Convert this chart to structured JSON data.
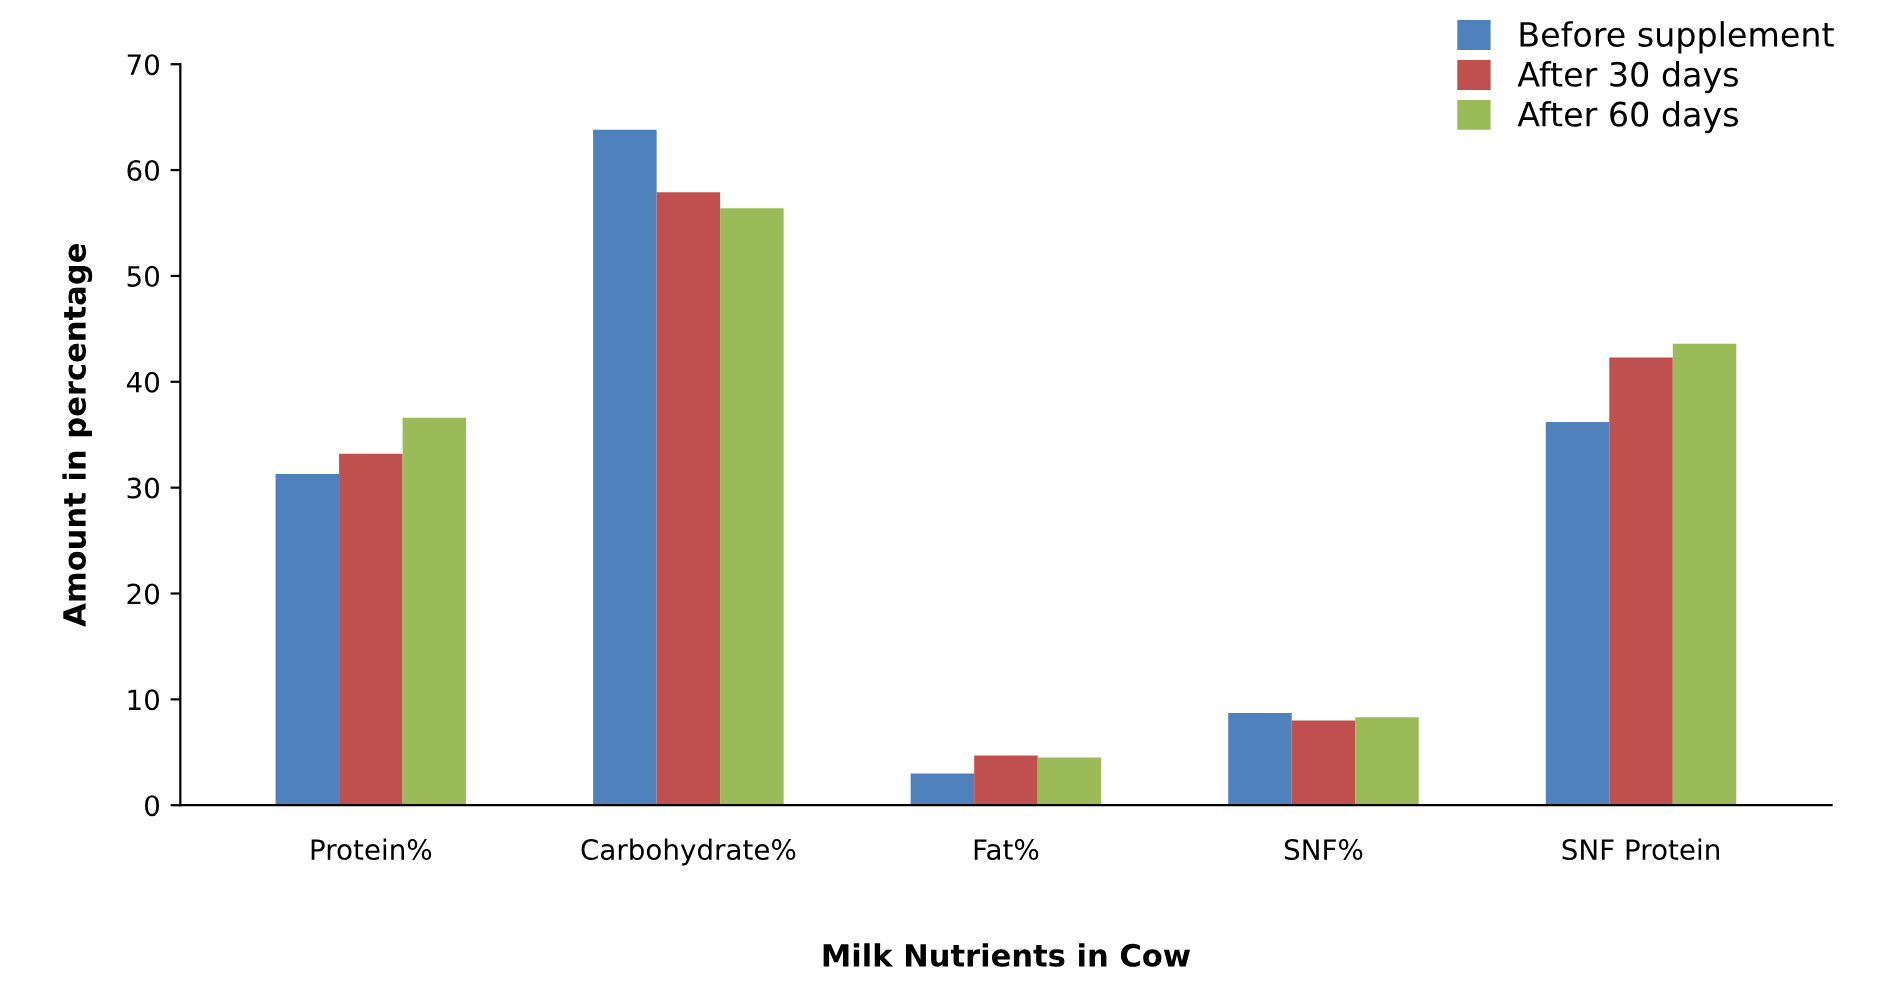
{
  "chart_data": {
    "type": "bar",
    "xlabel": "Milk Nutrients in Cow",
    "ylabel": "Amount in percentage",
    "categories": [
      "Protein%",
      "Carbohydrate%",
      "Fat%",
      "SNF%",
      "SNF Protein"
    ],
    "series": [
      {
        "name": "Before supplement",
        "color": "#4f81bd",
        "values": [
          31.3,
          63.8,
          3.0,
          8.7,
          36.2
        ]
      },
      {
        "name": "After 30 days",
        "color": "#c0504d",
        "values": [
          33.2,
          57.9,
          4.7,
          8.0,
          42.3
        ]
      },
      {
        "name": "After 60 days",
        "color": "#9bbb59",
        "values": [
          36.6,
          56.4,
          4.5,
          8.3,
          43.6
        ]
      }
    ],
    "ylim": [
      0,
      70
    ],
    "yticks": [
      0,
      10,
      20,
      30,
      40,
      50,
      60,
      70
    ],
    "grid": false,
    "legend": "top right"
  }
}
